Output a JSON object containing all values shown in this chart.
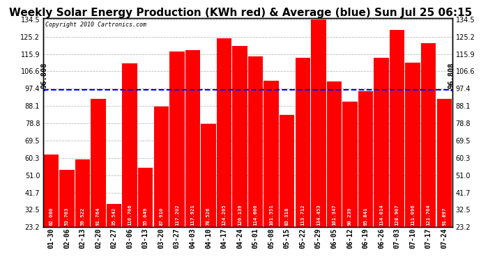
{
  "title": "Weekly Solar Energy Production (KWh red) & Average (blue) Sun Jul 25 06:15",
  "copyright": "Copyright 2010 Cartronics.com",
  "categories": [
    "01-30",
    "02-06",
    "02-13",
    "02-20",
    "02-27",
    "03-06",
    "03-13",
    "03-20",
    "03-27",
    "04-03",
    "04-10",
    "04-17",
    "04-24",
    "05-01",
    "05-08",
    "05-15",
    "05-22",
    "05-29",
    "06-05",
    "06-12",
    "06-19",
    "06-26",
    "07-03",
    "07-10",
    "07-17",
    "07-24"
  ],
  "values": [
    62.08,
    53.703,
    59.522,
    91.764,
    35.542,
    110.706,
    55.049,
    87.91,
    117.202,
    117.921,
    78.526,
    124.205,
    120.139,
    114.6,
    101.551,
    83.318,
    113.712,
    134.453,
    101.347,
    90.239,
    95.841,
    114.014,
    128.907,
    111.096,
    121.764,
    91.897
  ],
  "average": 96.808,
  "bar_color": "#ff0000",
  "average_color": "#0000ff",
  "background_color": "#ffffff",
  "grid_color": "#bbbbbb",
  "ylim_min": 23.2,
  "ylim_max": 134.5,
  "yticks_left": [
    134.5,
    125.2,
    115.9,
    106.6,
    97.4,
    88.1,
    78.8,
    69.5,
    60.3,
    51.0,
    41.7,
    32.5,
    23.2
  ],
  "title_fontsize": 11,
  "tick_fontsize": 7,
  "bar_label_fontsize": 5.2,
  "avg_label": "96.808",
  "avg_label_fontsize": 7.5,
  "copyright_fontsize": 6
}
